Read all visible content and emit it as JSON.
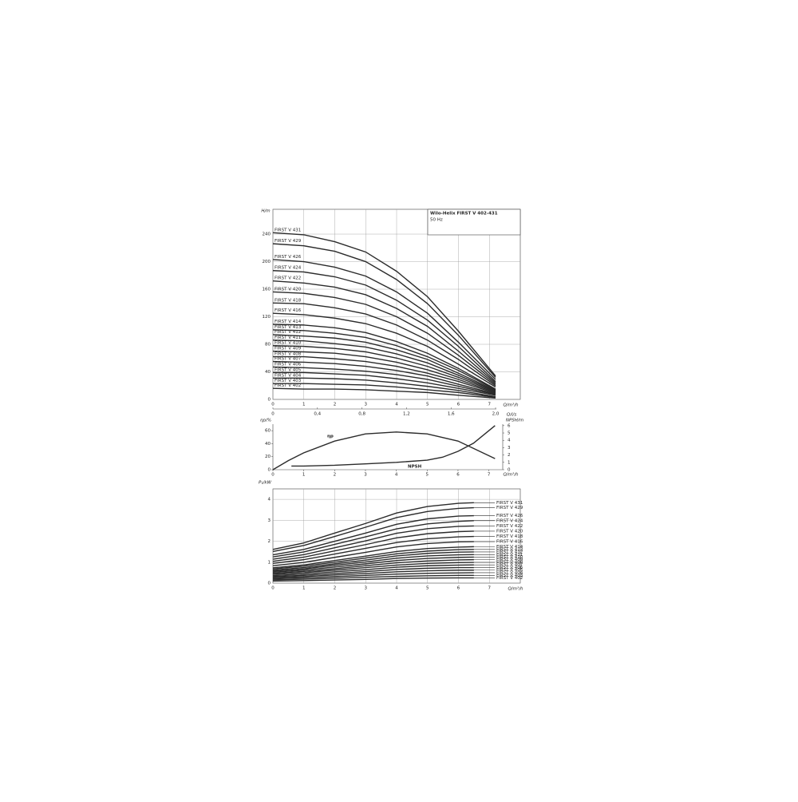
{
  "chart_data": [
    {
      "type": "line",
      "title": "Wilo-Helix FIRST V 402-431",
      "subtitle": "50 Hz",
      "ylabel": "H/m",
      "xlabel": "Q/m³/h",
      "x2label": "Q/l/s",
      "xlim": [
        0,
        8
      ],
      "xticks": [
        0,
        1,
        2,
        3,
        4,
        5,
        6,
        7
      ],
      "x2lim": [
        0,
        2.222
      ],
      "x2ticks": [
        0,
        {
          "value": 0.4,
          "label": "0,4"
        },
        {
          "value": 0.8,
          "label": "0,8"
        },
        {
          "value": 1.2,
          "label": "1,2"
        },
        {
          "value": 1.6,
          "label": "1,6"
        },
        {
          "value": 2.0,
          "label": "2,0"
        }
      ],
      "ylim": [
        0,
        276
      ],
      "yticks": [
        0,
        40,
        80,
        120,
        160,
        200,
        240
      ],
      "grid": true,
      "color": "#2b2b2b",
      "x": [
        0,
        1,
        2,
        3,
        4,
        5,
        6,
        7.2
      ],
      "series": [
        {
          "name": "FIRST V 431",
          "values": [
            242,
            239,
            229,
            214,
            186,
            149,
            99,
            34
          ]
        },
        {
          "name": "FIRST V 429",
          "values": [
            226,
            223,
            215,
            200,
            174,
            139,
            93,
            32
          ]
        },
        {
          "name": "FIRST V 426",
          "values": [
            203,
            200,
            192,
            179,
            156,
            125,
            83,
            29
          ]
        },
        {
          "name": "FIRST V 424",
          "values": [
            187,
            185,
            178,
            166,
            144,
            115,
            77,
            26
          ]
        },
        {
          "name": "FIRST V 422",
          "values": [
            172,
            169,
            163,
            152,
            132,
            106,
            70,
            24
          ]
        },
        {
          "name": "FIRST V 420",
          "values": [
            156,
            154,
            148,
            138,
            120,
            96,
            64,
            22
          ]
        },
        {
          "name": "FIRST V 418",
          "values": [
            140,
            139,
            133,
            124,
            108,
            86,
            58,
            20
          ]
        },
        {
          "name": "FIRST V 416",
          "values": [
            125,
            123,
            118,
            110,
            96,
            77,
            51,
            18
          ]
        },
        {
          "name": "FIRST V 414",
          "values": [
            109,
            108,
            104,
            97,
            84,
            67,
            45,
            15
          ]
        },
        {
          "name": "FIRST V 413",
          "values": [
            101,
            100,
            96,
            90,
            78,
            62,
            42,
            14
          ]
        },
        {
          "name": "FIRST V 412",
          "values": [
            94,
            92,
            89,
            83,
            72,
            58,
            38,
            13
          ]
        },
        {
          "name": "FIRST V 411",
          "values": [
            86,
            85,
            81,
            76,
            66,
            53,
            35,
            12
          ]
        },
        {
          "name": "FIRST V 410",
          "values": [
            78,
            77,
            74,
            69,
            60,
            48,
            32,
            11
          ]
        },
        {
          "name": "FIRST V 409",
          "values": [
            70,
            69,
            67,
            62,
            54,
            43,
            29,
            10
          ]
        },
        {
          "name": "FIRST V 408",
          "values": [
            62,
            62,
            59,
            55,
            48,
            38,
            26,
            9
          ]
        },
        {
          "name": "FIRST V 407",
          "values": [
            55,
            54,
            52,
            48,
            42,
            34,
            22,
            8
          ]
        },
        {
          "name": "FIRST V 406",
          "values": [
            47,
            46,
            44,
            41,
            36,
            29,
            19,
            7
          ]
        },
        {
          "name": "FIRST V 405",
          "values": [
            39,
            39,
            37,
            35,
            30,
            24,
            16,
            6
          ]
        },
        {
          "name": "FIRST V 404",
          "values": [
            31,
            31,
            30,
            28,
            24,
            19,
            13,
            4
          ]
        },
        {
          "name": "FIRST V 403",
          "values": [
            23,
            23,
            22,
            21,
            18,
            14,
            10,
            3
          ]
        },
        {
          "name": "FIRST V 402",
          "values": [
            16,
            15,
            15,
            14,
            12,
            10,
            6,
            2
          ]
        }
      ]
    },
    {
      "type": "line",
      "ylabel": "ηp/%",
      "y2label": "NPSH/m",
      "xlabel": "Q/m³/h",
      "xlim": [
        0,
        7.45
      ],
      "xticks": [
        0,
        1,
        2,
        3,
        4,
        5,
        6,
        7
      ],
      "ylim": [
        0,
        70
      ],
      "yticks": [
        0,
        20,
        40,
        60
      ],
      "y2lim": [
        0,
        6.2
      ],
      "y2ticks": [
        0,
        1,
        2,
        3,
        4,
        5,
        6
      ],
      "grid": false,
      "color": "#2b2b2b",
      "annotations": [
        "ηp",
        "NPSH"
      ],
      "series": [
        {
          "x": [
            0,
            0.5,
            1,
            2,
            3,
            4,
            5,
            6,
            7.2
          ],
          "values": [
            0,
            14,
            26,
            44,
            55,
            58,
            55,
            44,
            17
          ]
        },
        {
          "x": [
            0.6,
            1,
            2,
            3,
            4,
            5,
            5.5,
            6,
            6.5,
            7.2
          ],
          "values": [
            0.5,
            0.5,
            0.6,
            0.8,
            1,
            1.3,
            1.7,
            2.5,
            3.6,
            6
          ],
          "axis": "y2"
        }
      ]
    },
    {
      "type": "line",
      "ylabel": "P₁/kW",
      "xlabel": "Q/m³/h",
      "xlim": [
        0,
        8
      ],
      "xticks": [
        0,
        1,
        2,
        3,
        4,
        5,
        6,
        7
      ],
      "ylim": [
        0,
        4.5
      ],
      "yticks": [
        0,
        1,
        2,
        3,
        4
      ],
      "grid": true,
      "color": "#2b2b2b",
      "x": [
        0,
        1,
        2,
        3,
        4,
        5,
        6,
        6.5
      ],
      "series": [
        {
          "name": "FIRST V 431",
          "values": [
            1.61,
            1.92,
            2.39,
            2.85,
            3.35,
            3.66,
            3.81,
            3.84
          ]
        },
        {
          "name": "FIRST V 429",
          "values": [
            1.51,
            1.8,
            2.23,
            2.67,
            3.13,
            3.42,
            3.57,
            3.6
          ]
        },
        {
          "name": "FIRST V 426",
          "values": [
            1.35,
            1.61,
            2.0,
            2.39,
            2.81,
            3.07,
            3.2,
            3.22
          ]
        },
        {
          "name": "FIRST V 424",
          "values": [
            1.25,
            1.49,
            1.85,
            2.21,
            2.59,
            2.83,
            2.95,
            2.98
          ]
        },
        {
          "name": "FIRST V 422",
          "values": [
            1.14,
            1.36,
            1.69,
            2.02,
            2.38,
            2.6,
            2.71,
            2.73
          ]
        },
        {
          "name": "FIRST V 420",
          "values": [
            1.04,
            1.24,
            1.54,
            1.84,
            2.16,
            2.36,
            2.46,
            2.48
          ]
        },
        {
          "name": "FIRST V 418",
          "values": [
            0.94,
            1.12,
            1.39,
            1.66,
            1.94,
            2.12,
            2.21,
            2.23
          ]
        },
        {
          "name": "FIRST V 416",
          "values": [
            0.83,
            0.99,
            1.23,
            1.47,
            1.73,
            1.89,
            1.97,
            1.98
          ]
        },
        {
          "name": "FIRST V 414",
          "values": [
            0.73,
            0.87,
            1.08,
            1.29,
            1.51,
            1.65,
            1.72,
            1.74
          ]
        },
        {
          "name": "FIRST V 413",
          "values": [
            0.68,
            0.81,
            1.0,
            1.2,
            1.4,
            1.53,
            1.6,
            1.61
          ]
        },
        {
          "name": "FIRST V 412",
          "values": [
            0.62,
            0.74,
            0.92,
            1.1,
            1.3,
            1.42,
            1.48,
            1.49
          ]
        },
        {
          "name": "FIRST V 411",
          "values": [
            0.57,
            0.68,
            0.85,
            1.01,
            1.19,
            1.3,
            1.35,
            1.36
          ]
        },
        {
          "name": "FIRST V 410",
          "values": [
            0.52,
            0.62,
            0.77,
            0.92,
            1.08,
            1.18,
            1.23,
            1.24
          ]
        },
        {
          "name": "FIRST V 409",
          "values": [
            0.47,
            0.56,
            0.69,
            0.83,
            0.97,
            1.06,
            1.11,
            1.12
          ]
        },
        {
          "name": "FIRST V 408",
          "values": [
            0.42,
            0.5,
            0.62,
            0.74,
            0.86,
            0.94,
            0.98,
            0.99
          ]
        },
        {
          "name": "FIRST V 407",
          "values": [
            0.36,
            0.43,
            0.54,
            0.64,
            0.76,
            0.83,
            0.86,
            0.87
          ]
        },
        {
          "name": "FIRST V 406",
          "values": [
            0.31,
            0.37,
            0.46,
            0.55,
            0.65,
            0.71,
            0.74,
            0.74
          ]
        },
        {
          "name": "FIRST V 405",
          "values": [
            0.26,
            0.31,
            0.39,
            0.46,
            0.54,
            0.59,
            0.62,
            0.62
          ]
        },
        {
          "name": "FIRST V 404",
          "values": [
            0.21,
            0.25,
            0.31,
            0.37,
            0.43,
            0.47,
            0.49,
            0.5
          ]
        },
        {
          "name": "FIRST V 403",
          "values": [
            0.16,
            0.19,
            0.23,
            0.28,
            0.32,
            0.35,
            0.37,
            0.37
          ]
        },
        {
          "name": "FIRST V 402",
          "values": [
            0.1,
            0.12,
            0.15,
            0.18,
            0.22,
            0.24,
            0.25,
            0.25
          ]
        }
      ]
    }
  ]
}
